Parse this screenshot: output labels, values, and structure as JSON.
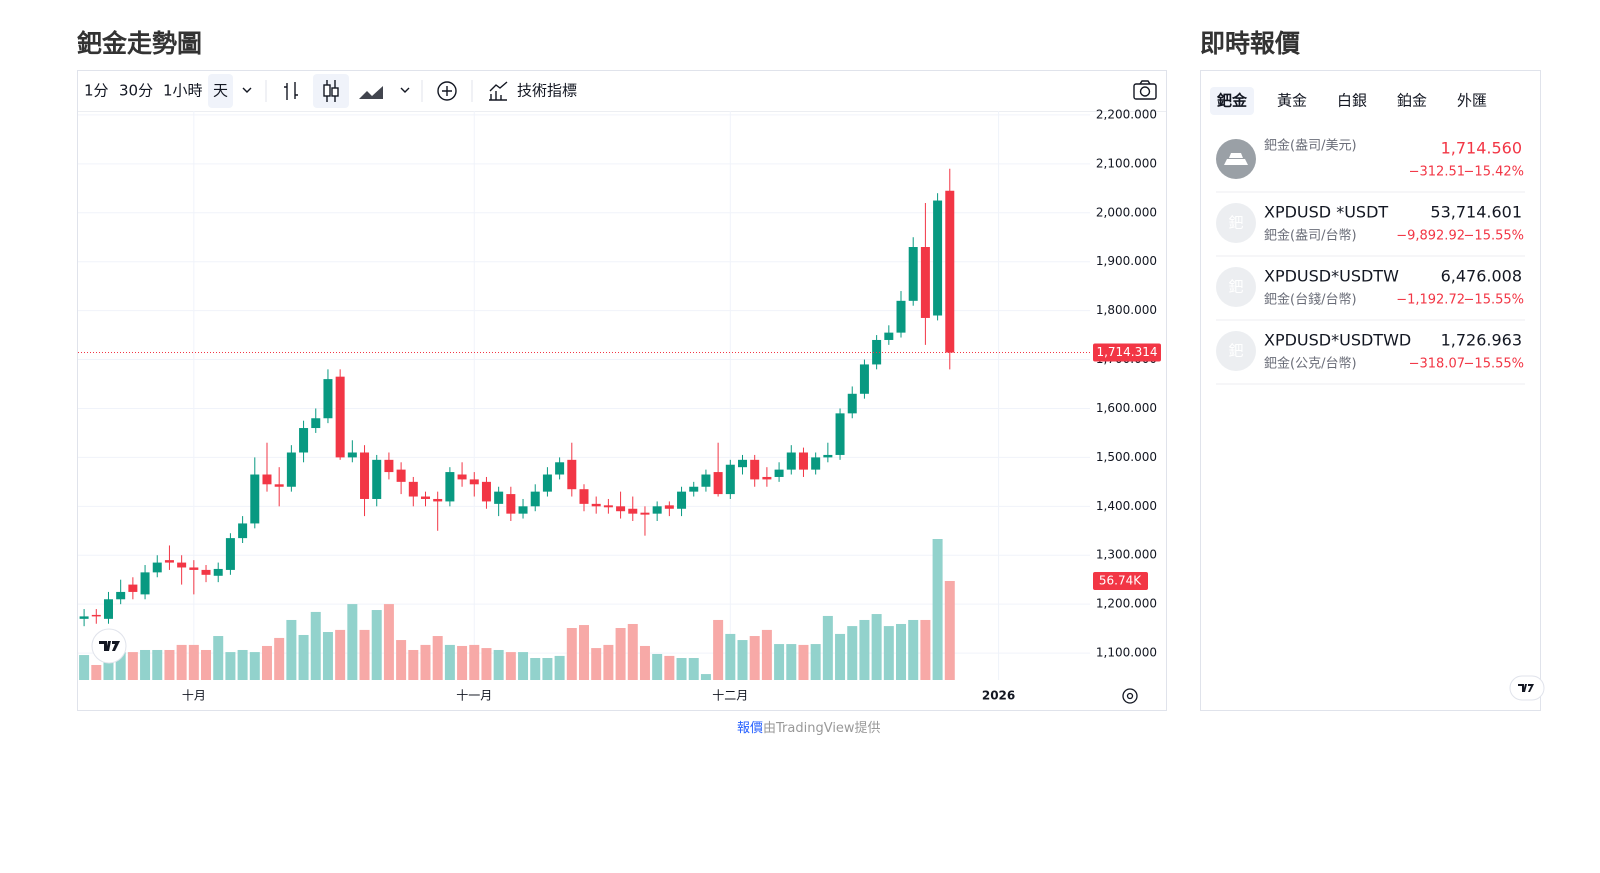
{
  "header": {
    "chart_title": "鈀金走勢圖",
    "quotes_title": "即時報價"
  },
  "toolbar": {
    "intervals": [
      "1分",
      "30分",
      "1小時",
      "天"
    ],
    "active_interval": 3,
    "indicators": "技術指標"
  },
  "chart_data": {
    "type": "candlestick",
    "open": [
      1170,
      1178,
      1170,
      1210,
      1240,
      1220,
      1265,
      1290,
      1285,
      1275,
      1270,
      1258,
      1270,
      1335,
      1365,
      1465,
      1445,
      1440,
      1510,
      1560,
      1580,
      1665,
      1500,
      1510,
      1415,
      1495,
      1475,
      1450,
      1420,
      1415,
      1410,
      1465,
      1455,
      1450,
      1405,
      1425,
      1385,
      1400,
      1430,
      1465,
      1495,
      1435,
      1405,
      1402,
      1400,
      1395,
      1387,
      1385,
      1402,
      1395,
      1430,
      1440,
      1470,
      1425,
      1480,
      1495,
      1460,
      1460,
      1475,
      1510,
      1475,
      1500,
      1505,
      1590,
      1630,
      1690,
      1740,
      1755,
      1820,
      1930,
      1790,
      2045
    ],
    "high": [
      1190,
      1190,
      1225,
      1250,
      1255,
      1280,
      1300,
      1320,
      1300,
      1290,
      1280,
      1285,
      1345,
      1380,
      1500,
      1530,
      1480,
      1525,
      1575,
      1600,
      1680,
      1680,
      1535,
      1525,
      1505,
      1510,
      1490,
      1460,
      1430,
      1430,
      1480,
      1490,
      1470,
      1460,
      1440,
      1440,
      1415,
      1445,
      1480,
      1500,
      1530,
      1445,
      1420,
      1415,
      1430,
      1420,
      1400,
      1410,
      1410,
      1440,
      1450,
      1475,
      1530,
      1495,
      1505,
      1505,
      1480,
      1490,
      1525,
      1520,
      1510,
      1530,
      1600,
      1645,
      1700,
      1750,
      1770,
      1840,
      1950,
      2020,
      2040,
      2090
    ],
    "low": [
      1155,
      1160,
      1160,
      1200,
      1210,
      1210,
      1255,
      1270,
      1240,
      1220,
      1245,
      1245,
      1260,
      1325,
      1355,
      1430,
      1400,
      1430,
      1490,
      1550,
      1570,
      1495,
      1490,
      1380,
      1400,
      1455,
      1425,
      1400,
      1400,
      1350,
      1400,
      1440,
      1420,
      1395,
      1380,
      1370,
      1375,
      1390,
      1420,
      1455,
      1420,
      1390,
      1385,
      1385,
      1375,
      1370,
      1340,
      1370,
      1380,
      1380,
      1420,
      1430,
      1420,
      1415,
      1465,
      1440,
      1440,
      1450,
      1465,
      1460,
      1465,
      1490,
      1495,
      1580,
      1620,
      1680,
      1730,
      1745,
      1810,
      1730,
      1780,
      1680
    ],
    "close": [
      1175,
      1175,
      1210,
      1225,
      1225,
      1265,
      1285,
      1285,
      1275,
      1270,
      1260,
      1272,
      1335,
      1365,
      1465,
      1445,
      1440,
      1510,
      1560,
      1580,
      1660,
      1500,
      1510,
      1415,
      1495,
      1470,
      1450,
      1420,
      1415,
      1410,
      1470,
      1455,
      1445,
      1410,
      1430,
      1385,
      1400,
      1430,
      1465,
      1490,
      1435,
      1405,
      1400,
      1398,
      1390,
      1385,
      1383,
      1400,
      1395,
      1430,
      1440,
      1465,
      1425,
      1485,
      1495,
      1455,
      1455,
      1475,
      1510,
      1475,
      1500,
      1505,
      1590,
      1630,
      1690,
      1740,
      1755,
      1820,
      1930,
      1785,
      2025,
      1714.314
    ],
    "volume": [
      14.3,
      8.6,
      11.5,
      16.0,
      16.0,
      17.2,
      17.2,
      17.2,
      20.1,
      20.1,
      17.2,
      25.2,
      16.0,
      17.2,
      16.0,
      19.5,
      24.1,
      34.4,
      25.8,
      39.0,
      27.5,
      28.7,
      43.5,
      28.7,
      40.1,
      43.5,
      22.9,
      17.2,
      20.1,
      25.2,
      20.1,
      19.5,
      20.1,
      18.3,
      17.2,
      16.0,
      16.0,
      12.6,
      12.6,
      13.8,
      29.8,
      31.5,
      18.3,
      20.1,
      29.8,
      32.1,
      19.5,
      14.9,
      13.8,
      12.6,
      12.6,
      3.4,
      34.4,
      26.4,
      22.9,
      25.2,
      28.7,
      20.6,
      20.6,
      20.1,
      20.6,
      36.7,
      26.4,
      30.9,
      34.4,
      37.8,
      30.9,
      32.1,
      34.4,
      34.4,
      80.8,
      56.74
    ],
    "last_price_label": "1,714.314",
    "last_volume_label": "56.74K",
    "ylim": [
      1045,
      2208
    ],
    "yticks": [
      {
        "value": 1100,
        "label": "1,100.000"
      },
      {
        "value": 1200,
        "label": "1,200.000"
      },
      {
        "value": 1300,
        "label": "1,300.000"
      },
      {
        "value": 1400,
        "label": "1,400.000"
      },
      {
        "value": 1500,
        "label": "1,500.000"
      },
      {
        "value": 1600,
        "label": "1,600.000"
      },
      {
        "value": 1700,
        "label": "1,700.000"
      },
      {
        "value": 1800,
        "label": "1,800.000"
      },
      {
        "value": 1900,
        "label": "1,900.000"
      },
      {
        "value": 2000,
        "label": "2,000.000"
      },
      {
        "value": 2100,
        "label": "2,100.000"
      },
      {
        "value": 2200,
        "label": "2,200.000"
      }
    ],
    "xlim": [
      -0.5,
      82.5
    ],
    "xticks": [
      {
        "value": 9,
        "label": "十月"
      },
      {
        "value": 32,
        "label": "十一月"
      },
      {
        "value": 53,
        "label": "十二月"
      },
      {
        "value": 75,
        "label": "2026"
      }
    ],
    "grid": true,
    "up_color": "#089981",
    "down_color": "#f23645",
    "volume_up_color": "#92d2cc",
    "volume_down_color": "#f7a9a7"
  },
  "quotes": {
    "tabs": [
      "鈀金",
      "黃金",
      "白銀",
      "鉑金",
      "外匯"
    ],
    "active_tab": 0,
    "icon_text": "鈀",
    "rows": [
      {
        "name": "鈀金(盎司/美元)",
        "price": "1,714.560",
        "change": "−312.51",
        "change_pct": "−15.42%"
      },
      {
        "symbol": "XPDUSD *USDT",
        "name": "鈀金(盎司/台幣)",
        "price": "53,714.601",
        "change": "−9,892.92",
        "change_pct": "−15.55%"
      },
      {
        "symbol": "XPDUSD*USDTW",
        "name": "鈀金(台錢/台幣)",
        "price": "6,476.008",
        "change": "−1,192.72",
        "change_pct": "−15.55%"
      },
      {
        "symbol": "XPDUSD*USDTWD",
        "name": "鈀金(公克/台幣)",
        "price": "1,726.963",
        "change": "−318.07",
        "change_pct": "−15.55%"
      }
    ]
  },
  "footer": {
    "provider_link": "報價",
    "provider_text": "由TradingView提供"
  }
}
